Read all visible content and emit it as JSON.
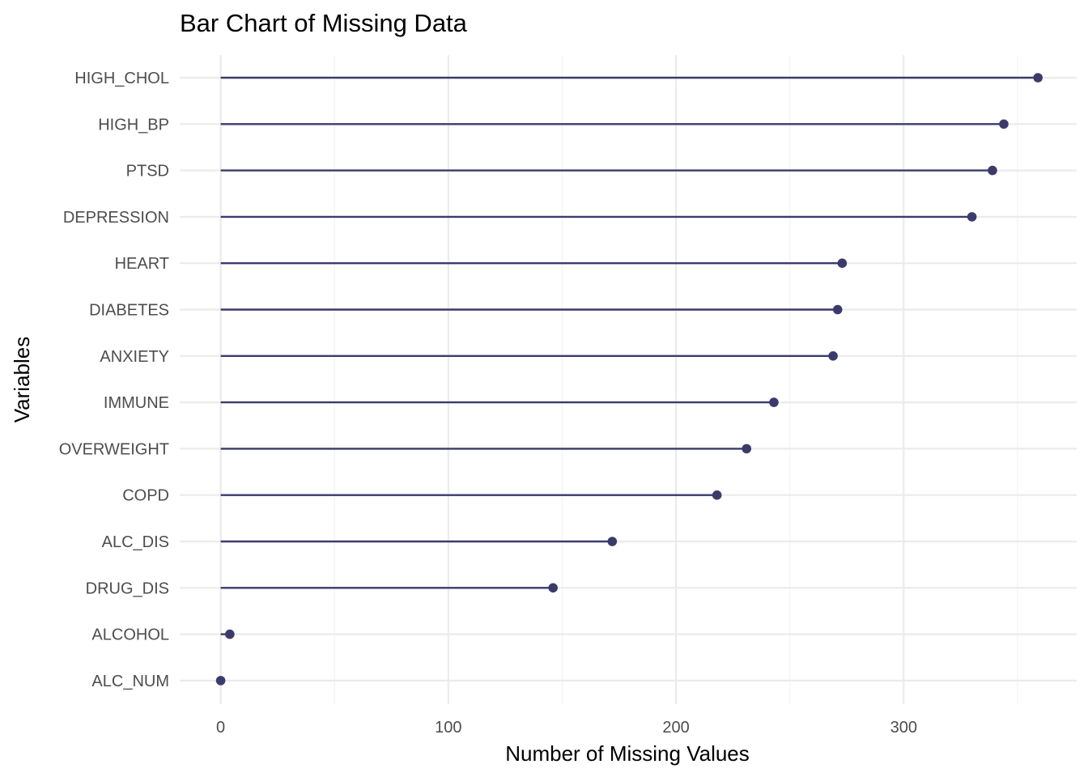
{
  "chart_data": {
    "type": "lollipop",
    "title": "Bar Chart of Missing Data",
    "xlabel": "Number of Missing Values",
    "ylabel": "Variables",
    "xlim": [
      -18,
      376
    ],
    "x_ticks": [
      0,
      100,
      200,
      300
    ],
    "x_tick_labels": [
      "0",
      "100",
      "200",
      "300"
    ],
    "grid": true,
    "legend": "none",
    "color": "#3b3b6b",
    "categories": [
      "HIGH_CHOL",
      "HIGH_BP",
      "PTSD",
      "DEPRESSION",
      "HEART",
      "DIABETES",
      "ANXIETY",
      "IMMUNE",
      "OVERWEIGHT",
      "COPD",
      "ALC_DIS",
      "DRUG_DIS",
      "ALCOHOL",
      "ALC_NUM"
    ],
    "values": [
      359,
      344,
      339,
      330,
      273,
      271,
      269,
      243,
      231,
      218,
      172,
      146,
      4,
      0
    ]
  }
}
